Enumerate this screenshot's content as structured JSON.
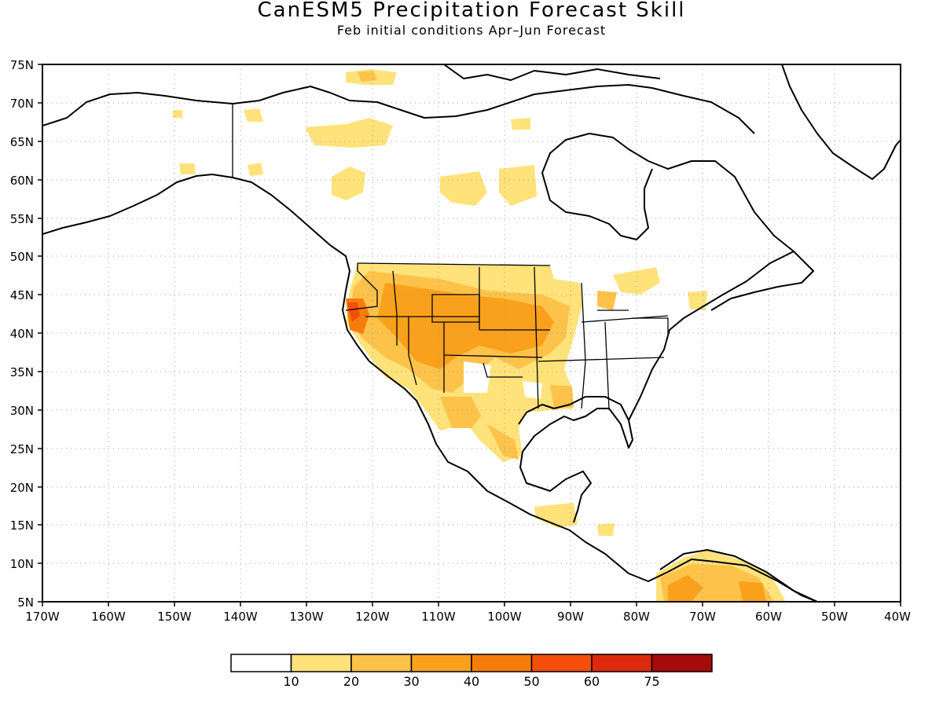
{
  "header": {
    "title": "CanESM5 Precipitation Forecast Skill",
    "subtitle": "Feb initial conditions  Apr–Jun Forecast"
  },
  "map": {
    "lat_labels": [
      "75N",
      "70N",
      "65N",
      "60N",
      "55N",
      "50N",
      "45N",
      "40N",
      "35N",
      "30N",
      "25N",
      "20N",
      "15N",
      "10N",
      "5N"
    ],
    "lon_labels": [
      "170W",
      "160W",
      "150W",
      "140W",
      "130W",
      "120W",
      "110W",
      "100W",
      "90W",
      "80W",
      "70W",
      "60W",
      "50W",
      "40W"
    ],
    "lat_range": [
      5,
      75
    ],
    "lon_range": [
      -170,
      -40
    ],
    "grid": true
  },
  "colorbar": {
    "labels": [
      "10",
      "20",
      "30",
      "40",
      "50",
      "60",
      "75"
    ],
    "colors": [
      "#ffffff",
      "#ffe27a",
      "#fcc24a",
      "#f9a11c",
      "#f67c0c",
      "#f34e0a",
      "#dd2a0c",
      "#a50b08"
    ]
  }
}
